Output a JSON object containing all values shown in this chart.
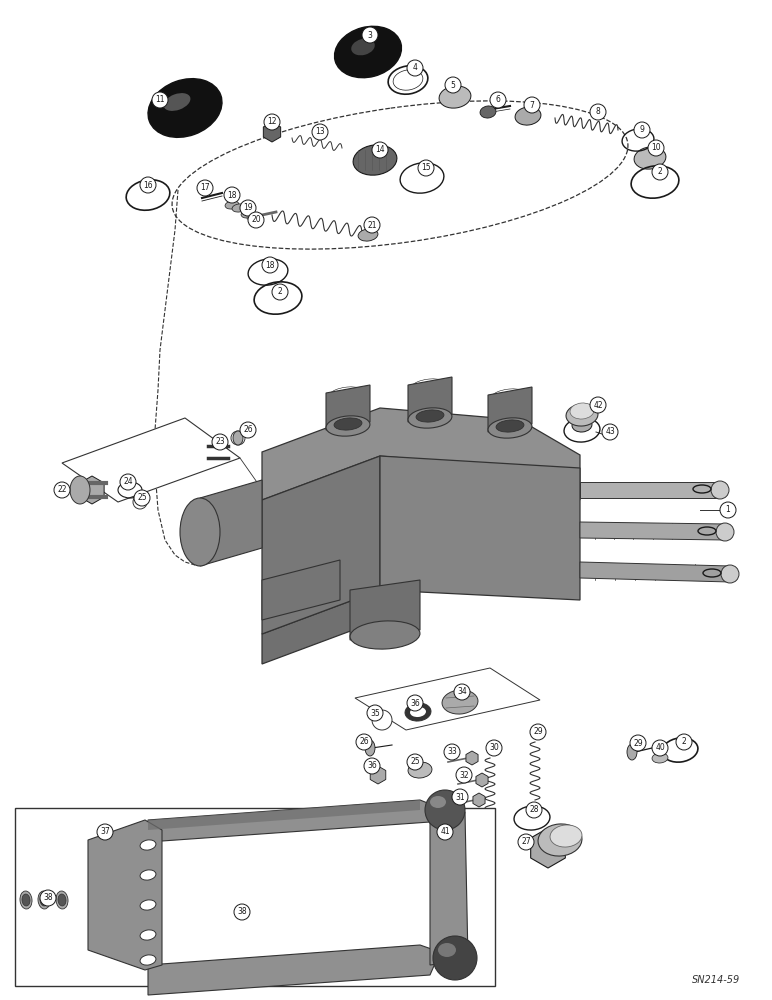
{
  "background_color": "#ffffff",
  "figure_width": 7.72,
  "figure_height": 10.0,
  "dpi": 100,
  "watermark_text": "SN214-59",
  "line_color": "#1a1a1a",
  "gray_dark": "#333333",
  "gray_med": "#666666",
  "gray_light": "#aaaaaa",
  "gray_fill": "#bbbbbb",
  "black": "#000000",
  "white": "#ffffff"
}
